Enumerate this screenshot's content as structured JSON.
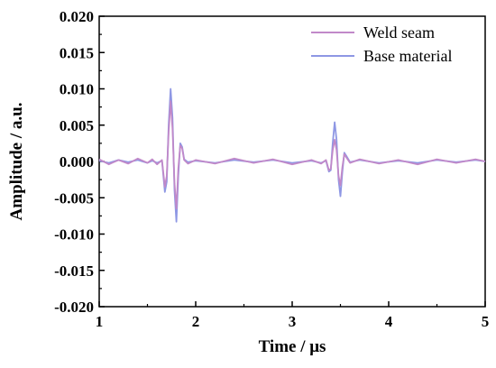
{
  "chart_data": {
    "type": "line",
    "xlabel": "Time  /  μs",
    "ylabel": "Amplitude  /  a.u.",
    "xlim": [
      1,
      5
    ],
    "ylim": [
      -0.02,
      0.02
    ],
    "xticks": [
      "1",
      "2",
      "3",
      "4",
      "5"
    ],
    "yticks": [
      "0.020",
      "0.015",
      "0.010",
      "0.005",
      "0.000",
      "-0.005",
      "-0.010",
      "-0.015",
      "-0.020"
    ],
    "grid": false,
    "legend_position": "top-right",
    "x": [
      1.0,
      1.1,
      1.2,
      1.3,
      1.4,
      1.5,
      1.55,
      1.6,
      1.65,
      1.68,
      1.7,
      1.72,
      1.74,
      1.76,
      1.78,
      1.8,
      1.82,
      1.84,
      1.86,
      1.88,
      1.92,
      2.0,
      2.2,
      2.4,
      2.6,
      2.8,
      3.0,
      3.2,
      3.3,
      3.35,
      3.38,
      3.4,
      3.42,
      3.44,
      3.46,
      3.48,
      3.5,
      3.52,
      3.54,
      3.56,
      3.6,
      3.7,
      3.9,
      4.1,
      4.3,
      4.5,
      4.7,
      4.9,
      5.0
    ],
    "series": [
      {
        "name": "Weld seam",
        "color": "#c189c9",
        "values": [
          0.0003,
          -0.0004,
          0.0002,
          -0.0003,
          0.0004,
          -0.0002,
          0.0003,
          -0.0004,
          0.0002,
          -0.0035,
          -0.002,
          0.004,
          0.0083,
          0.0045,
          -0.003,
          -0.0065,
          -0.001,
          0.0022,
          0.0018,
          0.0002,
          -0.0003,
          0.0002,
          -0.0003,
          0.0004,
          -0.0002,
          0.0003,
          -0.0004,
          0.0002,
          -0.0003,
          0.0002,
          -0.0012,
          -0.001,
          0.0015,
          0.003,
          0.0016,
          -0.002,
          -0.0033,
          -0.0008,
          0.001,
          0.0006,
          -0.0002,
          0.0003,
          -0.0003,
          0.0002,
          -0.0004,
          0.0003,
          -0.0002,
          0.0003,
          0.0
        ]
      },
      {
        "name": "Base material",
        "color": "#8e97e4",
        "values": [
          0.0001,
          -0.0002,
          0.0002,
          -0.0001,
          0.0002,
          -0.0002,
          0.0001,
          -0.0002,
          0.0001,
          -0.0042,
          -0.0028,
          0.005,
          0.01,
          0.006,
          -0.004,
          -0.0083,
          -0.002,
          0.0025,
          0.002,
          0.0003,
          -0.0001,
          0.0001,
          -0.0002,
          0.0002,
          -0.0001,
          0.0002,
          -0.0002,
          0.0001,
          -0.0002,
          0.0001,
          -0.0014,
          -0.0012,
          0.0025,
          0.0054,
          0.003,
          -0.0025,
          -0.0048,
          -0.0015,
          0.0012,
          0.0008,
          -0.0001,
          0.0002,
          -0.0002,
          0.0001,
          -0.0002,
          0.0002,
          -0.0001,
          0.0002,
          0.0
        ]
      }
    ]
  }
}
